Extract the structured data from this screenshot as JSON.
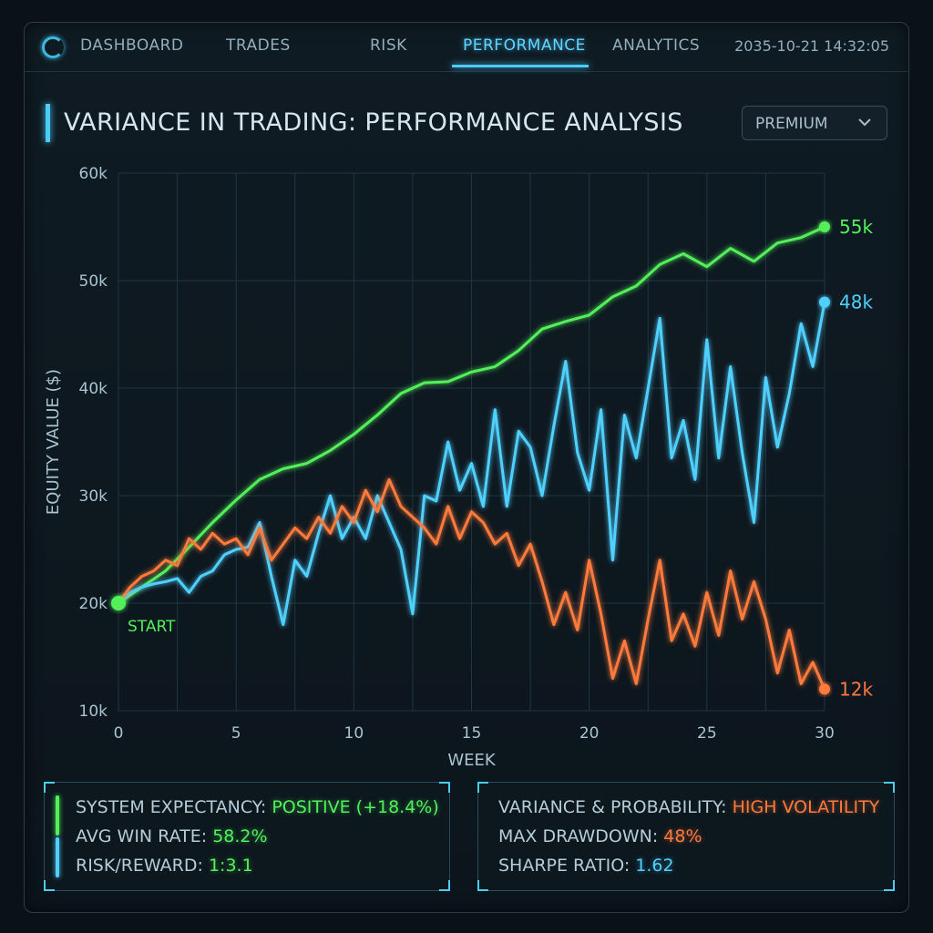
{
  "nav": {
    "items": [
      "DASHBOARD",
      "TRADES",
      "RISK",
      "PERFORMANCE",
      "ANALYTICS"
    ],
    "active": "PERFORMANCE",
    "timestamp": "2035-10-21 14:32:05"
  },
  "header": {
    "title": "VARIANCE IN TRADING: PERFORMANCE ANALYSIS",
    "plan_select": "PREMIUM"
  },
  "colors": {
    "green": "#52f05a",
    "blue": "#4fd0ff",
    "orange": "#ff7a3c",
    "accent": "#4ccdf8"
  },
  "chart_data": {
    "type": "line",
    "xlabel": "WEEK",
    "ylabel": "EQUITY VALUE ($)",
    "xlim": [
      0,
      30
    ],
    "ylim": [
      10000,
      60000
    ],
    "x_ticks": [
      0,
      5,
      10,
      15,
      20,
      25,
      30
    ],
    "y_ticks": [
      {
        "value": 10000,
        "label": "10k"
      },
      {
        "value": 20000,
        "label": "20k"
      },
      {
        "value": 30000,
        "label": "30k"
      },
      {
        "value": 40000,
        "label": "40k"
      },
      {
        "value": 50000,
        "label": "50k"
      },
      {
        "value": 60000,
        "label": "60k"
      }
    ],
    "grid": true,
    "start_label": "START",
    "series": [
      {
        "color": "#52f05a",
        "end_label": "55k",
        "points": [
          [
            0,
            20000
          ],
          [
            1,
            21500
          ],
          [
            2,
            23000
          ],
          [
            3,
            25200
          ],
          [
            4,
            27500
          ],
          [
            5,
            29600
          ],
          [
            6,
            31500
          ],
          [
            7,
            32500
          ],
          [
            8,
            33000
          ],
          [
            9,
            34200
          ],
          [
            10,
            35700
          ],
          [
            11,
            37500
          ],
          [
            12,
            39500
          ],
          [
            13,
            40500
          ],
          [
            14,
            40600
          ],
          [
            15,
            41500
          ],
          [
            16,
            42000
          ],
          [
            17,
            43500
          ],
          [
            18,
            45500
          ],
          [
            19,
            46200
          ],
          [
            20,
            46800
          ],
          [
            21,
            48500
          ],
          [
            22,
            49500
          ],
          [
            23,
            51500
          ],
          [
            24,
            52500
          ],
          [
            25,
            51300
          ],
          [
            26,
            53000
          ],
          [
            27,
            51800
          ],
          [
            28,
            53500
          ],
          [
            29,
            54000
          ],
          [
            30,
            55000
          ]
        ]
      },
      {
        "color": "#4fd0ff",
        "end_label": "48k",
        "points": [
          [
            0,
            20000
          ],
          [
            0.5,
            21000
          ],
          [
            1,
            21500
          ],
          [
            1.5,
            21800
          ],
          [
            2,
            22000
          ],
          [
            2.5,
            22300
          ],
          [
            3,
            21000
          ],
          [
            3.5,
            22500
          ],
          [
            4,
            23000
          ],
          [
            4.5,
            24500
          ],
          [
            5,
            25000
          ],
          [
            5.5,
            25200
          ],
          [
            6,
            27500
          ],
          [
            6.5,
            22500
          ],
          [
            7,
            18000
          ],
          [
            7.5,
            24000
          ],
          [
            8,
            22500
          ],
          [
            8.5,
            26500
          ],
          [
            9,
            30000
          ],
          [
            9.5,
            26000
          ],
          [
            10,
            28000
          ],
          [
            10.5,
            26000
          ],
          [
            11,
            30000
          ],
          [
            11.5,
            27500
          ],
          [
            12,
            25000
          ],
          [
            12.5,
            19000
          ],
          [
            13,
            30000
          ],
          [
            13.5,
            29500
          ],
          [
            14,
            35000
          ],
          [
            14.5,
            30500
          ],
          [
            15,
            33000
          ],
          [
            15.5,
            29000
          ],
          [
            16,
            38000
          ],
          [
            16.5,
            29000
          ],
          [
            17,
            36000
          ],
          [
            17.5,
            34500
          ],
          [
            18,
            30000
          ],
          [
            18.5,
            36500
          ],
          [
            19,
            42500
          ],
          [
            19.5,
            34000
          ],
          [
            20,
            30500
          ],
          [
            20.5,
            38000
          ],
          [
            21,
            24000
          ],
          [
            21.5,
            37500
          ],
          [
            22,
            33500
          ],
          [
            22.5,
            40000
          ],
          [
            23,
            46500
          ],
          [
            23.5,
            33500
          ],
          [
            24,
            37000
          ],
          [
            24.5,
            31500
          ],
          [
            25,
            44500
          ],
          [
            25.5,
            33500
          ],
          [
            26,
            42000
          ],
          [
            26.5,
            34000
          ],
          [
            27,
            27500
          ],
          [
            27.5,
            41000
          ],
          [
            28,
            34500
          ],
          [
            28.5,
            39500
          ],
          [
            29,
            46000
          ],
          [
            29.5,
            42000
          ],
          [
            30,
            48000
          ]
        ]
      },
      {
        "color": "#ff7a3c",
        "end_label": "12k",
        "points": [
          [
            0,
            20000
          ],
          [
            0.5,
            21500
          ],
          [
            1,
            22500
          ],
          [
            1.5,
            23000
          ],
          [
            2,
            24000
          ],
          [
            2.5,
            23500
          ],
          [
            3,
            26000
          ],
          [
            3.5,
            25000
          ],
          [
            4,
            26500
          ],
          [
            4.5,
            25500
          ],
          [
            5,
            26000
          ],
          [
            5.5,
            24500
          ],
          [
            6,
            27000
          ],
          [
            6.5,
            24000
          ],
          [
            7,
            25500
          ],
          [
            7.5,
            27000
          ],
          [
            8,
            26000
          ],
          [
            8.5,
            28000
          ],
          [
            9,
            26500
          ],
          [
            9.5,
            29000
          ],
          [
            10,
            27500
          ],
          [
            10.5,
            30500
          ],
          [
            11,
            28500
          ],
          [
            11.5,
            31500
          ],
          [
            12,
            29000
          ],
          [
            12.5,
            28000
          ],
          [
            13,
            27000
          ],
          [
            13.5,
            25500
          ],
          [
            14,
            29000
          ],
          [
            14.5,
            26000
          ],
          [
            15,
            28500
          ],
          [
            15.5,
            27500
          ],
          [
            16,
            25500
          ],
          [
            16.5,
            26500
          ],
          [
            17,
            23500
          ],
          [
            17.5,
            25500
          ],
          [
            18,
            22000
          ],
          [
            18.5,
            18000
          ],
          [
            19,
            21000
          ],
          [
            19.5,
            17500
          ],
          [
            20,
            24000
          ],
          [
            20.5,
            19000
          ],
          [
            21,
            13000
          ],
          [
            21.5,
            16500
          ],
          [
            22,
            12500
          ],
          [
            22.5,
            18500
          ],
          [
            23,
            24000
          ],
          [
            23.5,
            16500
          ],
          [
            24,
            19000
          ],
          [
            24.5,
            16000
          ],
          [
            25,
            21000
          ],
          [
            25.5,
            17000
          ],
          [
            26,
            23000
          ],
          [
            26.5,
            18500
          ],
          [
            27,
            22000
          ],
          [
            27.5,
            18500
          ],
          [
            28,
            13500
          ],
          [
            28.5,
            17500
          ],
          [
            29,
            12500
          ],
          [
            29.5,
            14500
          ],
          [
            30,
            12000
          ]
        ]
      }
    ]
  },
  "stats_left": [
    {
      "label": "SYSTEM EXPECTANCY: ",
      "value": "POSITIVE (+18.4%)",
      "color": "#52f05a"
    },
    {
      "label": "AVG WIN RATE: ",
      "value": "58.2%",
      "color": "#52f05a"
    },
    {
      "label": "RISK/REWARD: ",
      "value": "1:3.1",
      "color": "#52f05a"
    }
  ],
  "stats_right": [
    {
      "label": "VARIANCE & PROBABILITY: ",
      "value": "HIGH VOLATILITY",
      "color": "#ff7a3c"
    },
    {
      "label": "MAX DRAWDOWN: ",
      "value": "48%",
      "color": "#ff7a3c"
    },
    {
      "label": "SHARPE RATIO: ",
      "value": "1.62",
      "color": "#4fd0ff"
    }
  ]
}
